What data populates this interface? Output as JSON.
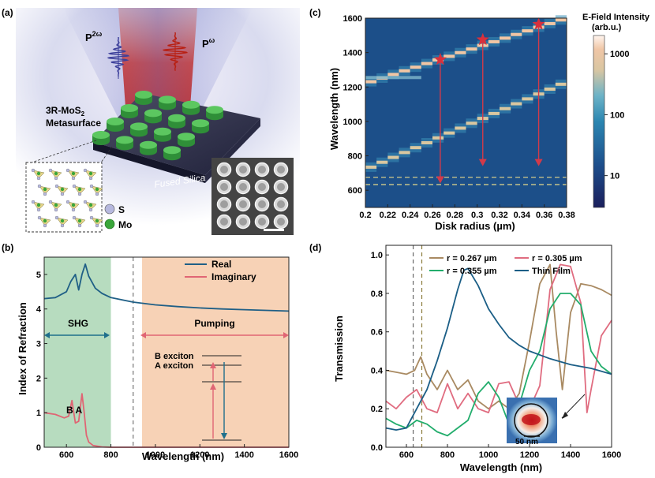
{
  "panels": {
    "a": {
      "label": "(a)",
      "p2w": "P",
      "p2w_sup": "2ω",
      "pw": "P",
      "pw_sup": "ω",
      "metasurface_line1": "3R-MoS",
      "metasurface_sub": "2",
      "metasurface_line2": "Metasurface",
      "substrate": "Fused Silica",
      "legend": [
        "S",
        "Mo"
      ],
      "colors": {
        "s_atom": "#b6b8de",
        "mo_atom": "#3aa63a",
        "disk": "#4fbf55",
        "beam": "#e6391c"
      }
    },
    "b": {
      "label": "(b)",
      "ylabel": "Index of Refraction",
      "xlabel": "Wavelength (nm)",
      "legend": [
        "Real",
        "Imaginary"
      ],
      "shg_label": "SHG",
      "pump_label": "Pumping",
      "b_exciton": "B exciton",
      "a_exciton": "A exciton",
      "peak_labels": "B A",
      "colors": {
        "real": "#1f5f86",
        "imag": "#e06574",
        "shg_band": "#b7dcbf",
        "pump_band": "#f7d2b6"
      }
    },
    "c": {
      "label": "(c)",
      "ylabel": "Wavelength (nm)",
      "xlabel": "Disk radius (µm)",
      "colorbar_title_1": "E-Field Intensity",
      "colorbar_title_2": "(arb.u.)",
      "colorbar_ticks": [
        "1000",
        "100",
        "10"
      ]
    },
    "d": {
      "label": "(d)",
      "ylabel": "Transmission",
      "xlabel": "Wavelength (nm)",
      "inset_scale": "50 nm",
      "colors": {
        "r267": "#a98a62",
        "r305": "#e06c80",
        "r355": "#22ad6c",
        "film": "#1b5e86"
      }
    }
  },
  "chart_data": [
    {
      "type": "line",
      "panel": "b",
      "xlim": [
        500,
        1600
      ],
      "ylim": [
        0,
        5.5
      ],
      "x_ticks": [
        600,
        800,
        1000,
        1200,
        1400,
        1600
      ],
      "y_ticks": [
        0,
        1,
        2,
        3,
        4,
        5
      ],
      "shaded_regions": [
        {
          "name": "SHG",
          "x": [
            500,
            800
          ]
        },
        {
          "name": "Pumping",
          "x": [
            940,
            1600
          ]
        }
      ],
      "vline_dashed": 900,
      "series": [
        {
          "name": "Real",
          "x": [
            500,
            550,
            600,
            620,
            640,
            655,
            670,
            685,
            700,
            730,
            760,
            800,
            900,
            1000,
            1100,
            1200,
            1300,
            1400,
            1500,
            1600
          ],
          "y": [
            4.3,
            4.33,
            4.5,
            4.8,
            5.0,
            4.55,
            5.0,
            5.3,
            4.95,
            4.6,
            4.45,
            4.33,
            4.2,
            4.12,
            4.07,
            4.03,
            4.0,
            3.98,
            3.96,
            3.94
          ]
        },
        {
          "name": "Imaginary",
          "x": [
            500,
            550,
            590,
            610,
            625,
            640,
            655,
            670,
            680,
            690,
            700,
            720,
            760,
            800,
            1600
          ],
          "y": [
            1.0,
            0.95,
            0.85,
            0.9,
            1.35,
            0.7,
            0.75,
            1.55,
            1.0,
            0.35,
            0.15,
            0.05,
            0.01,
            0,
            0
          ]
        }
      ]
    },
    {
      "type": "heatmap",
      "panel": "c",
      "xlim": [
        0.2,
        0.38
      ],
      "ylim": [
        500,
        1600
      ],
      "x_ticks": [
        0.2,
        0.22,
        0.24,
        0.26,
        0.28,
        0.3,
        0.32,
        0.34,
        0.36,
        0.38
      ],
      "y_ticks": [
        600,
        800,
        1000,
        1200,
        1400,
        1600
      ],
      "colorbar_range": [
        3,
        2000
      ],
      "colorbar_scale": "log",
      "dashed_lines_wavelength": [
        633,
        675
      ],
      "markers": [
        {
          "radius": 0.267,
          "wavelength": 1360
        },
        {
          "radius": 0.305,
          "wavelength": 1475
        },
        {
          "radius": 0.355,
          "wavelength": 1565
        }
      ],
      "arrows": [
        {
          "radius": 0.267,
          "from": 1360,
          "to": 640
        },
        {
          "radius": 0.305,
          "from": 1475,
          "to": 740
        },
        {
          "radius": 0.355,
          "from": 1565,
          "to": 740
        }
      ],
      "bright_bands": [
        {
          "radius": [
            0.2,
            0.38
          ],
          "wavelength": [
            1220,
            1600
          ]
        },
        {
          "radius": [
            0.2,
            0.38
          ],
          "wavelength": [
            720,
            1230
          ]
        }
      ]
    },
    {
      "type": "line",
      "panel": "d",
      "xlim": [
        500,
        1600
      ],
      "ylim": [
        0,
        1.05
      ],
      "x_ticks": [
        600,
        800,
        1000,
        1200,
        1400,
        1600
      ],
      "y_ticks": [
        0.0,
        0.2,
        0.4,
        0.6,
        0.8,
        1.0
      ],
      "vlines_dashed": [
        633,
        675
      ],
      "series": [
        {
          "name": "r = 0.267 µm",
          "x": [
            500,
            550,
            600,
            640,
            670,
            700,
            750,
            800,
            850,
            900,
            950,
            1000,
            1050,
            1100,
            1150,
            1200,
            1250,
            1300,
            1330,
            1360,
            1400,
            1450,
            1500,
            1550,
            1600
          ],
          "y": [
            0.4,
            0.39,
            0.38,
            0.4,
            0.47,
            0.38,
            0.3,
            0.4,
            0.3,
            0.35,
            0.24,
            0.2,
            0.24,
            0.2,
            0.28,
            0.55,
            0.85,
            0.95,
            0.6,
            0.3,
            0.7,
            0.85,
            0.84,
            0.82,
            0.79
          ]
        },
        {
          "name": "r = 0.305 µm",
          "x": [
            500,
            550,
            600,
            650,
            700,
            750,
            800,
            850,
            900,
            950,
            1000,
            1050,
            1100,
            1150,
            1200,
            1250,
            1300,
            1350,
            1400,
            1450,
            1480,
            1500,
            1550,
            1600
          ],
          "y": [
            0.24,
            0.2,
            0.26,
            0.3,
            0.2,
            0.18,
            0.33,
            0.2,
            0.28,
            0.2,
            0.18,
            0.33,
            0.34,
            0.22,
            0.2,
            0.32,
            0.82,
            0.95,
            0.94,
            0.75,
            0.18,
            0.3,
            0.58,
            0.66
          ]
        },
        {
          "name": "r = 0.355 µm",
          "x": [
            500,
            550,
            600,
            650,
            700,
            750,
            800,
            850,
            900,
            950,
            1000,
            1050,
            1100,
            1150,
            1200,
            1250,
            1300,
            1350,
            1400,
            1450,
            1500,
            1550,
            1600
          ],
          "y": [
            0.15,
            0.12,
            0.1,
            0.14,
            0.12,
            0.08,
            0.06,
            0.1,
            0.14,
            0.28,
            0.34,
            0.26,
            0.12,
            0.22,
            0.4,
            0.5,
            0.72,
            0.8,
            0.8,
            0.74,
            0.5,
            0.42,
            0.38
          ]
        },
        {
          "name": "Thin Film",
          "x": [
            500,
            550,
            600,
            650,
            700,
            750,
            800,
            850,
            880,
            900,
            950,
            1000,
            1050,
            1100,
            1150,
            1200,
            1300,
            1400,
            1500,
            1600
          ],
          "y": [
            0.1,
            0.09,
            0.1,
            0.2,
            0.3,
            0.45,
            0.62,
            0.82,
            0.92,
            0.93,
            0.84,
            0.72,
            0.64,
            0.57,
            0.53,
            0.5,
            0.46,
            0.43,
            0.41,
            0.38
          ]
        }
      ]
    }
  ]
}
